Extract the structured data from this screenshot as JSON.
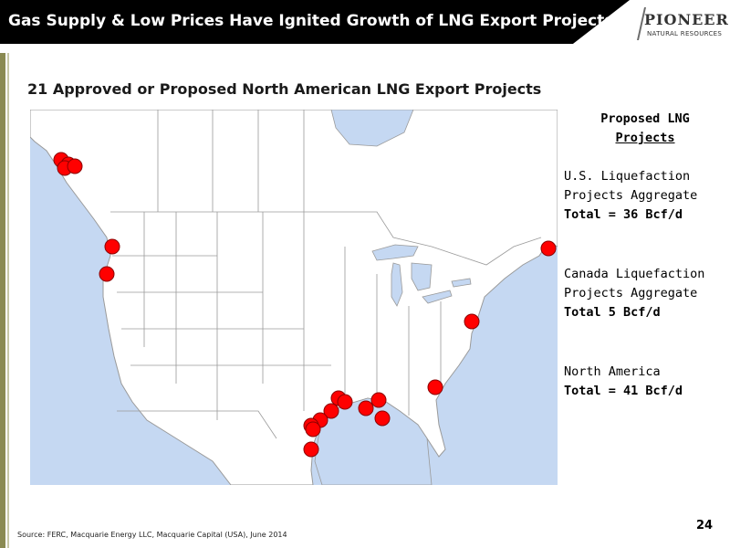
{
  "header": {
    "title": "Gas Supply & Low Prices Have Ignited Growth of LNG Export Projects",
    "logo_name": "PIONEER",
    "logo_sub": "NATURAL RESOURCES"
  },
  "subtitle": "21 Approved or Proposed North American LNG Export Projects",
  "legend": {
    "title_line1": "Proposed LNG",
    "title_line2": "Projects",
    "us_line1": "U.S. Liquefaction",
    "us_line2": "Projects Aggregate",
    "us_total": "Total = 36 Bcf/d",
    "ca_line1": "Canada Liquefaction",
    "ca_line2": "Projects Aggregate",
    "ca_total": "Total 5 Bcf/d",
    "na_line1": "North America",
    "na_total": "Total = 41 Bcf/d"
  },
  "source": "Source: FERC, Macquarie Energy LLC, Macquarie Capital (USA), June 2014",
  "page_number": "24",
  "colors": {
    "marker": "#ff0000",
    "water": "#c5d8f2",
    "land": "#ffffff",
    "border": "#9a9a9a",
    "title_bar": "#000000"
  },
  "map": {
    "marker_icon": "red-circle-marker"
  }
}
